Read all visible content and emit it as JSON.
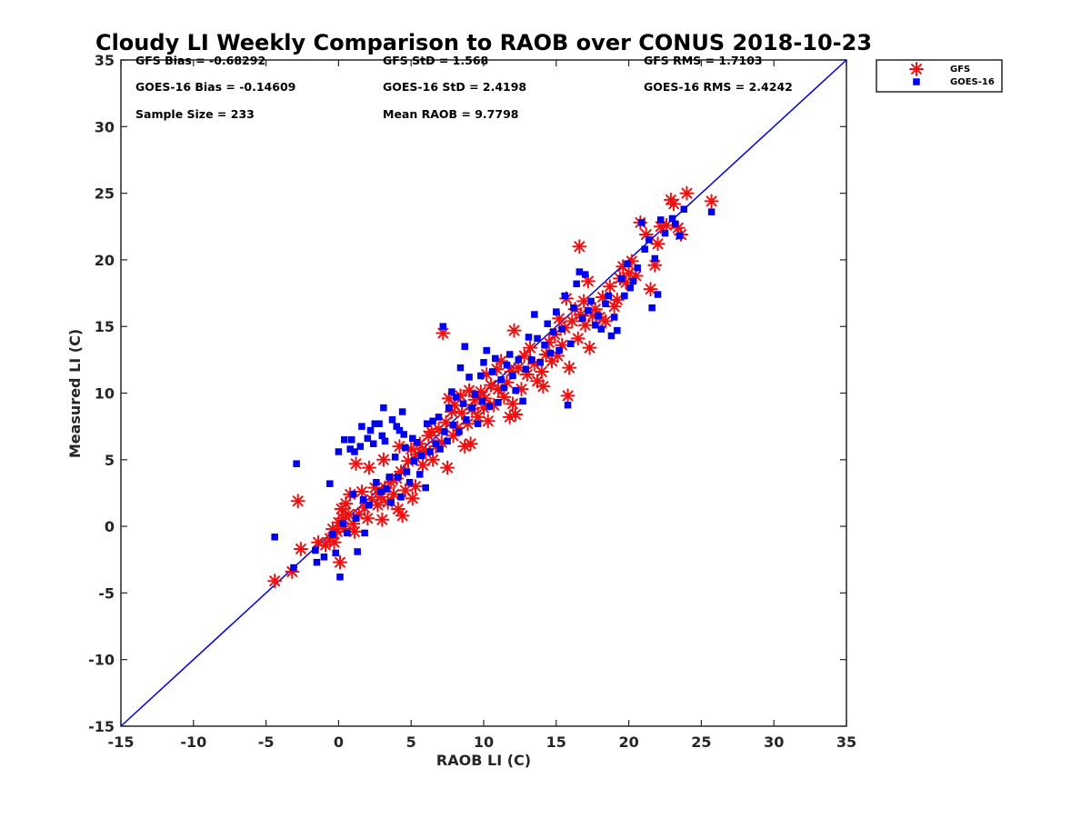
{
  "chart_data": {
    "type": "scatter",
    "title": "Cloudy LI Weekly Comparison to RAOB over CONUS 2018-10-23",
    "xlabel": "RAOB LI (C)",
    "ylabel": "Measured LI (C)",
    "xlim": [
      -15,
      35
    ],
    "ylim": [
      -15,
      35
    ],
    "xticks": [
      -15,
      -10,
      -5,
      0,
      5,
      10,
      15,
      20,
      25,
      30,
      35
    ],
    "yticks": [
      -15,
      -10,
      -5,
      0,
      5,
      10,
      15,
      20,
      25,
      30,
      35
    ],
    "grid": false,
    "legend_position": "top-right outside",
    "reference_line": {
      "name": "1:1 line",
      "x": [
        -15,
        35
      ],
      "y": [
        -15,
        35
      ],
      "color": "#0000dd"
    },
    "stats": [
      [
        "GFS Bias = -0.68292",
        "GFS StD = 1.568",
        "GFS RMS = 1.7103"
      ],
      [
        "GOES-16 Bias = -0.14609",
        "GOES-16 StD = 2.4198",
        "GOES-16 RMS = 2.4242"
      ],
      [
        "Sample Size = 233",
        "Mean RAOB = 9.7798",
        ""
      ]
    ],
    "series": [
      {
        "name": "GFS",
        "marker": "asterisk",
        "color": "#ee1111",
        "points": [
          [
            -4.4,
            -4.1
          ],
          [
            -3.2,
            -3.4
          ],
          [
            -2.8,
            1.9
          ],
          [
            -2.6,
            -1.7
          ],
          [
            -1.4,
            -1.2
          ],
          [
            -0.9,
            -1.4
          ],
          [
            -0.6,
            -0.9
          ],
          [
            -0.4,
            -0.2
          ],
          [
            -0.3,
            -1.2
          ],
          [
            -0.1,
            -0.4
          ],
          [
            0.0,
            0.3
          ],
          [
            0.1,
            -2.7
          ],
          [
            0.2,
            1.3
          ],
          [
            0.3,
            0.6
          ],
          [
            0.4,
            -0.2
          ],
          [
            0.5,
            1.7
          ],
          [
            0.7,
            0.9
          ],
          [
            0.8,
            2.4
          ],
          [
            1.0,
            0.2
          ],
          [
            1.1,
            -0.4
          ],
          [
            1.2,
            4.7
          ],
          [
            1.4,
            0.9
          ],
          [
            1.6,
            2.6
          ],
          [
            1.8,
            1.4
          ],
          [
            2.0,
            0.6
          ],
          [
            2.1,
            4.4
          ],
          [
            2.3,
            2.0
          ],
          [
            2.5,
            2.9
          ],
          [
            2.7,
            1.6
          ],
          [
            2.9,
            2.2
          ],
          [
            3.0,
            0.5
          ],
          [
            3.1,
            5.0
          ],
          [
            3.2,
            2.9
          ],
          [
            3.4,
            1.8
          ],
          [
            3.6,
            3.3
          ],
          [
            3.8,
            2.4
          ],
          [
            4.0,
            3.6
          ],
          [
            4.1,
            1.3
          ],
          [
            4.2,
            6.0
          ],
          [
            4.3,
            4.1
          ],
          [
            4.4,
            0.8
          ],
          [
            4.6,
            2.7
          ],
          [
            4.8,
            4.9
          ],
          [
            5.0,
            5.8
          ],
          [
            5.1,
            2.1
          ],
          [
            5.3,
            3.0
          ],
          [
            5.5,
            5.4
          ],
          [
            5.6,
            6.2
          ],
          [
            5.8,
            4.6
          ],
          [
            6.0,
            5.6
          ],
          [
            6.2,
            6.8
          ],
          [
            6.4,
            7.1
          ],
          [
            6.5,
            5.0
          ],
          [
            6.7,
            6.0
          ],
          [
            6.9,
            7.3
          ],
          [
            7.1,
            6.3
          ],
          [
            7.2,
            14.5
          ],
          [
            7.4,
            7.8
          ],
          [
            7.5,
            4.4
          ],
          [
            7.6,
            9.6
          ],
          [
            7.8,
            8.6
          ],
          [
            7.9,
            6.8
          ],
          [
            8.0,
            9.1
          ],
          [
            8.2,
            7.4
          ],
          [
            8.4,
            9.8
          ],
          [
            8.5,
            8.5
          ],
          [
            8.7,
            6.0
          ],
          [
            8.9,
            7.7
          ],
          [
            9.0,
            10.2
          ],
          [
            9.1,
            6.2
          ],
          [
            9.2,
            8.8
          ],
          [
            9.4,
            9.5
          ],
          [
            9.6,
            8.2
          ],
          [
            9.8,
            10.1
          ],
          [
            10.0,
            8.9
          ],
          [
            10.1,
            9.6
          ],
          [
            10.2,
            11.4
          ],
          [
            10.3,
            7.9
          ],
          [
            10.5,
            10.6
          ],
          [
            10.7,
            9.1
          ],
          [
            10.9,
            11.8
          ],
          [
            11.0,
            10.3
          ],
          [
            11.2,
            12.4
          ],
          [
            11.4,
            9.7
          ],
          [
            11.6,
            10.8
          ],
          [
            11.8,
            8.2
          ],
          [
            11.9,
            11.6
          ],
          [
            12.0,
            9.2
          ],
          [
            12.1,
            14.7
          ],
          [
            12.2,
            8.4
          ],
          [
            12.4,
            11.9
          ],
          [
            12.6,
            10.3
          ],
          [
            12.8,
            12.8
          ],
          [
            13.0,
            11.4
          ],
          [
            13.2,
            13.4
          ],
          [
            13.5,
            12.2
          ],
          [
            13.7,
            10.9
          ],
          [
            14.0,
            11.6
          ],
          [
            14.1,
            10.5
          ],
          [
            14.3,
            12.9
          ],
          [
            14.5,
            13.8
          ],
          [
            14.7,
            12.4
          ],
          [
            14.9,
            14.4
          ],
          [
            15.1,
            12.8
          ],
          [
            15.2,
            15.6
          ],
          [
            15.4,
            13.6
          ],
          [
            15.6,
            14.9
          ],
          [
            15.7,
            17.1
          ],
          [
            15.8,
            9.8
          ],
          [
            15.9,
            11.9
          ],
          [
            16.1,
            15.4
          ],
          [
            16.3,
            16.3
          ],
          [
            16.5,
            14.1
          ],
          [
            16.6,
            21.0
          ],
          [
            16.7,
            15.9
          ],
          [
            16.9,
            16.9
          ],
          [
            17.0,
            15.1
          ],
          [
            17.2,
            18.4
          ],
          [
            17.3,
            13.4
          ],
          [
            17.5,
            15.8
          ],
          [
            17.7,
            16.3
          ],
          [
            18.0,
            15.7
          ],
          [
            18.2,
            17.2
          ],
          [
            18.4,
            15.4
          ],
          [
            18.7,
            18.0
          ],
          [
            19.0,
            16.5
          ],
          [
            19.2,
            17.0
          ],
          [
            19.4,
            18.6
          ],
          [
            19.6,
            19.5
          ],
          [
            19.8,
            18.3
          ],
          [
            20.0,
            19.0
          ],
          [
            20.2,
            19.9
          ],
          [
            20.5,
            18.8
          ],
          [
            20.8,
            22.8
          ],
          [
            21.2,
            21.9
          ],
          [
            21.5,
            17.8
          ],
          [
            21.8,
            19.6
          ],
          [
            22.0,
            21.2
          ],
          [
            22.2,
            22.5
          ],
          [
            22.6,
            22.6
          ],
          [
            22.9,
            24.5
          ],
          [
            23.1,
            24.2
          ],
          [
            23.4,
            22.4
          ],
          [
            23.6,
            21.9
          ],
          [
            24.0,
            25.0
          ],
          [
            25.7,
            24.4
          ]
        ]
      },
      {
        "name": "GOES-16",
        "marker": "square",
        "color": "#0000ee",
        "points": [
          [
            -4.4,
            -0.8
          ],
          [
            -3.1,
            -3.1
          ],
          [
            -2.9,
            4.7
          ],
          [
            -1.6,
            -1.8
          ],
          [
            -1.5,
            -2.7
          ],
          [
            -1.0,
            -2.3
          ],
          [
            -0.6,
            3.2
          ],
          [
            -0.4,
            -0.6
          ],
          [
            -0.2,
            -2.0
          ],
          [
            0.0,
            5.6
          ],
          [
            0.1,
            -3.8
          ],
          [
            0.3,
            0.2
          ],
          [
            0.4,
            6.5
          ],
          [
            0.6,
            -0.5
          ],
          [
            0.8,
            5.8
          ],
          [
            0.9,
            6.5
          ],
          [
            1.0,
            2.4
          ],
          [
            1.1,
            5.6
          ],
          [
            1.2,
            0.6
          ],
          [
            1.3,
            -1.9
          ],
          [
            1.5,
            6.0
          ],
          [
            1.6,
            7.5
          ],
          [
            1.7,
            2.0
          ],
          [
            1.8,
            -0.5
          ],
          [
            2.0,
            6.6
          ],
          [
            2.1,
            1.6
          ],
          [
            2.2,
            7.2
          ],
          [
            2.4,
            6.2
          ],
          [
            2.5,
            7.7
          ],
          [
            2.6,
            3.3
          ],
          [
            2.8,
            7.7
          ],
          [
            2.9,
            2.6
          ],
          [
            3.0,
            6.8
          ],
          [
            3.1,
            8.9
          ],
          [
            3.2,
            6.4
          ],
          [
            3.3,
            2.8
          ],
          [
            3.5,
            3.7
          ],
          [
            3.6,
            1.8
          ],
          [
            3.7,
            8.0
          ],
          [
            3.9,
            5.2
          ],
          [
            4.0,
            7.5
          ],
          [
            4.1,
            3.7
          ],
          [
            4.2,
            7.2
          ],
          [
            4.3,
            2.2
          ],
          [
            4.4,
            8.6
          ],
          [
            4.5,
            6.9
          ],
          [
            4.6,
            5.9
          ],
          [
            4.7,
            4.1
          ],
          [
            4.9,
            3.3
          ],
          [
            5.1,
            6.6
          ],
          [
            5.2,
            4.9
          ],
          [
            5.4,
            6.3
          ],
          [
            5.6,
            3.9
          ],
          [
            5.7,
            5.3
          ],
          [
            6.0,
            2.9
          ],
          [
            6.1,
            7.7
          ],
          [
            6.3,
            5.6
          ],
          [
            6.5,
            7.9
          ],
          [
            6.7,
            6.2
          ],
          [
            6.9,
            8.2
          ],
          [
            7.0,
            5.8
          ],
          [
            7.2,
            15.0
          ],
          [
            7.3,
            7.1
          ],
          [
            7.5,
            6.4
          ],
          [
            7.6,
            8.9
          ],
          [
            7.8,
            10.1
          ],
          [
            7.9,
            7.6
          ],
          [
            8.1,
            9.7
          ],
          [
            8.3,
            7.1
          ],
          [
            8.4,
            11.9
          ],
          [
            8.6,
            9.2
          ],
          [
            8.7,
            13.5
          ],
          [
            8.8,
            8.0
          ],
          [
            9.0,
            11.2
          ],
          [
            9.2,
            8.9
          ],
          [
            9.4,
            9.9
          ],
          [
            9.6,
            7.7
          ],
          [
            9.8,
            11.3
          ],
          [
            9.9,
            9.4
          ],
          [
            10.0,
            12.3
          ],
          [
            10.2,
            13.2
          ],
          [
            10.4,
            9.0
          ],
          [
            10.6,
            11.6
          ],
          [
            10.8,
            12.6
          ],
          [
            11.0,
            9.3
          ],
          [
            11.2,
            11.0
          ],
          [
            11.4,
            10.4
          ],
          [
            11.6,
            12.1
          ],
          [
            11.8,
            12.9
          ],
          [
            12.0,
            11.3
          ],
          [
            12.2,
            10.2
          ],
          [
            12.4,
            12.5
          ],
          [
            12.7,
            9.4
          ],
          [
            12.9,
            11.8
          ],
          [
            13.1,
            14.2
          ],
          [
            13.3,
            12.5
          ],
          [
            13.5,
            15.9
          ],
          [
            13.7,
            14.1
          ],
          [
            13.9,
            12.3
          ],
          [
            14.2,
            13.6
          ],
          [
            14.4,
            15.2
          ],
          [
            14.6,
            13.0
          ],
          [
            14.8,
            14.6
          ],
          [
            15.0,
            16.1
          ],
          [
            15.2,
            13.2
          ],
          [
            15.4,
            14.8
          ],
          [
            15.6,
            17.3
          ],
          [
            15.8,
            9.1
          ],
          [
            16.0,
            13.7
          ],
          [
            16.2,
            16.4
          ],
          [
            16.4,
            18.2
          ],
          [
            16.6,
            19.1
          ],
          [
            16.8,
            15.6
          ],
          [
            17.0,
            18.9
          ],
          [
            17.2,
            16.2
          ],
          [
            17.4,
            16.9
          ],
          [
            17.7,
            15.1
          ],
          [
            17.9,
            15.8
          ],
          [
            18.1,
            14.8
          ],
          [
            18.4,
            16.7
          ],
          [
            18.6,
            17.3
          ],
          [
            18.8,
            14.3
          ],
          [
            19.0,
            15.7
          ],
          [
            19.2,
            14.7
          ],
          [
            19.5,
            18.6
          ],
          [
            19.7,
            17.3
          ],
          [
            19.9,
            19.7
          ],
          [
            20.1,
            17.9
          ],
          [
            20.3,
            18.4
          ],
          [
            20.6,
            19.4
          ],
          [
            20.9,
            22.8
          ],
          [
            21.1,
            20.8
          ],
          [
            21.4,
            21.5
          ],
          [
            21.6,
            16.4
          ],
          [
            21.8,
            20.1
          ],
          [
            22.0,
            17.4
          ],
          [
            22.2,
            23.0
          ],
          [
            22.5,
            22.0
          ],
          [
            23.0,
            23.1
          ],
          [
            23.2,
            22.7
          ],
          [
            23.5,
            21.8
          ],
          [
            23.8,
            23.8
          ],
          [
            25.7,
            23.6
          ]
        ]
      }
    ]
  }
}
